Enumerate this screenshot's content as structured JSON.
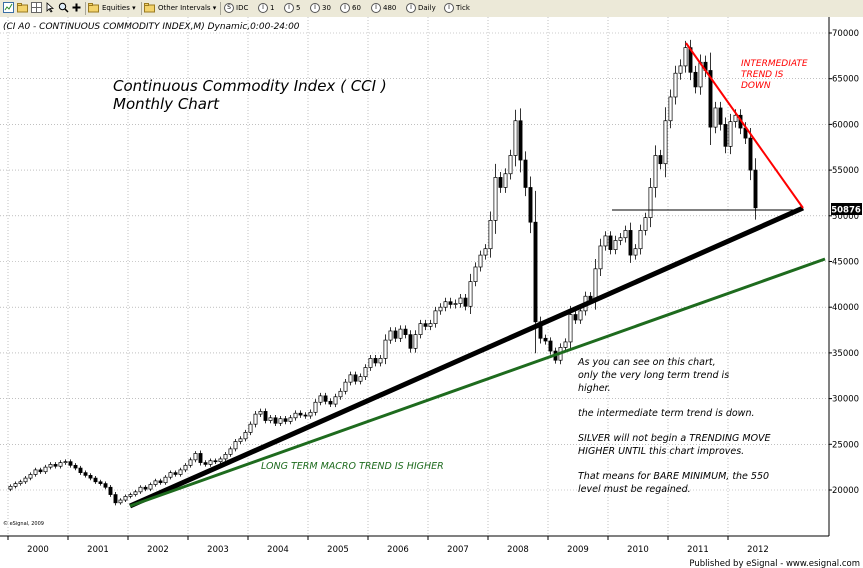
{
  "toolbar": {
    "equities_label": "Equities",
    "other_intervals_label": "Other Intervals",
    "intervals": [
      "IDC",
      "1",
      "5",
      "30",
      "60",
      "480",
      "Daily",
      "Tick"
    ],
    "interval_markers": [
      "S",
      "I",
      "I",
      "I",
      "I",
      "I",
      "I",
      "I"
    ]
  },
  "header": {
    "symbol_line": "(CI A0 - CONTINUOUS COMMODITY INDEX,M) Dynamic,0:00-24:00"
  },
  "annotations": {
    "title_line1": "Continuous Commodity Index ( CCI )",
    "title_line2": "Monthly Chart",
    "intermediate_line1": "INTERMEDIATE",
    "intermediate_line2": "TREND IS",
    "intermediate_line3": "DOWN",
    "long_term_text": "LONG TERM MACRO TREND IS HIGHER",
    "note_l1": "As you can see on this chart,",
    "note_l2": "only the very long term trend is",
    "note_l3": "higher.",
    "note_l4": "the intermediate term trend is down.",
    "note_l5": "SILVER will not begin a TRENDING MOVE",
    "note_l6": "HIGHER UNTIL this chart improves.",
    "note_l7": "That means for BARE MINIMUM, the 550",
    "note_l8": "level must be regained.",
    "copyright": "© eSignal, 2009",
    "published": "Published by eSignal - www.esignal.com"
  },
  "colors": {
    "up_candle": "#ffffff",
    "down_candle": "#000000",
    "intermediate_trend": "#ff0000",
    "long_term_trend": "#1e6b1e",
    "support_trend": "#000000",
    "annotation_red": "#ff0000",
    "annotation_green": "#1e6b1e",
    "price_label_bg": "#000000"
  },
  "chart_data": {
    "type": "candlestick",
    "x_ticks": [
      "2000",
      "2001",
      "2002",
      "2003",
      "2004",
      "2005",
      "2006",
      "2007",
      "2008",
      "2009",
      "2010",
      "2011",
      "2012"
    ],
    "y_ticks": [
      "20000",
      "25000",
      "30000",
      "35000",
      "40000",
      "45000",
      "50000",
      "55000",
      "60000",
      "65000",
      "70000"
    ],
    "ylim": [
      16000,
      71000
    ],
    "last_price": "50876",
    "grid": true,
    "series_close": [
      [
        "2000-01",
        20400
      ],
      [
        "2000-02",
        20700
      ],
      [
        "2000-03",
        20900
      ],
      [
        "2000-04",
        21300
      ],
      [
        "2000-05",
        21700
      ],
      [
        "2000-06",
        22200
      ],
      [
        "2000-07",
        22000
      ],
      [
        "2000-08",
        22500
      ],
      [
        "2000-09",
        22800
      ],
      [
        "2000-10",
        22600
      ],
      [
        "2000-11",
        23000
      ],
      [
        "2000-12",
        23100
      ],
      [
        "2001-01",
        22700
      ],
      [
        "2001-02",
        22400
      ],
      [
        "2001-03",
        21900
      ],
      [
        "2001-04",
        21600
      ],
      [
        "2001-05",
        21300
      ],
      [
        "2001-06",
        20900
      ],
      [
        "2001-07",
        20700
      ],
      [
        "2001-08",
        20300
      ],
      [
        "2001-09",
        19500
      ],
      [
        "2001-10",
        18600
      ],
      [
        "2001-11",
        18900
      ],
      [
        "2001-12",
        19300
      ],
      [
        "2002-01",
        19500
      ],
      [
        "2002-02",
        19800
      ],
      [
        "2002-03",
        20300
      ],
      [
        "2002-04",
        20100
      ],
      [
        "2002-05",
        20600
      ],
      [
        "2002-06",
        21000
      ],
      [
        "2002-07",
        20800
      ],
      [
        "2002-08",
        21400
      ],
      [
        "2002-09",
        21900
      ],
      [
        "2002-10",
        21700
      ],
      [
        "2002-11",
        22200
      ],
      [
        "2002-12",
        22700
      ],
      [
        "2003-01",
        23300
      ],
      [
        "2003-02",
        24000
      ],
      [
        "2003-03",
        23000
      ],
      [
        "2003-04",
        22800
      ],
      [
        "2003-05",
        23200
      ],
      [
        "2003-06",
        23100
      ],
      [
        "2003-07",
        23400
      ],
      [
        "2003-08",
        23900
      ],
      [
        "2003-09",
        24500
      ],
      [
        "2003-10",
        25300
      ],
      [
        "2003-11",
        25600
      ],
      [
        "2003-12",
        26300
      ],
      [
        "2004-01",
        27200
      ],
      [
        "2004-02",
        28300
      ],
      [
        "2004-03",
        28600
      ],
      [
        "2004-04",
        27600
      ],
      [
        "2004-05",
        27900
      ],
      [
        "2004-06",
        27300
      ],
      [
        "2004-07",
        27800
      ],
      [
        "2004-08",
        27500
      ],
      [
        "2004-09",
        27900
      ],
      [
        "2004-10",
        28400
      ],
      [
        "2004-11",
        28200
      ],
      [
        "2004-12",
        28100
      ],
      [
        "2005-01",
        28500
      ],
      [
        "2005-02",
        29600
      ],
      [
        "2005-03",
        30300
      ],
      [
        "2005-04",
        29700
      ],
      [
        "2005-05",
        29400
      ],
      [
        "2005-06",
        30200
      ],
      [
        "2005-07",
        30800
      ],
      [
        "2005-08",
        31800
      ],
      [
        "2005-09",
        32600
      ],
      [
        "2005-10",
        31900
      ],
      [
        "2005-11",
        32400
      ],
      [
        "2005-12",
        33400
      ],
      [
        "2006-01",
        34400
      ],
      [
        "2006-02",
        33900
      ],
      [
        "2006-03",
        34400
      ],
      [
        "2006-04",
        36400
      ],
      [
        "2006-05",
        37400
      ],
      [
        "2006-06",
        36600
      ],
      [
        "2006-07",
        37600
      ],
      [
        "2006-08",
        37000
      ],
      [
        "2006-09",
        35500
      ],
      [
        "2006-10",
        37000
      ],
      [
        "2006-11",
        38200
      ],
      [
        "2006-12",
        37900
      ],
      [
        "2007-01",
        38200
      ],
      [
        "2007-02",
        39600
      ],
      [
        "2007-03",
        40000
      ],
      [
        "2007-04",
        40600
      ],
      [
        "2007-05",
        40300
      ],
      [
        "2007-06",
        40400
      ],
      [
        "2007-07",
        41000
      ],
      [
        "2007-08",
        40100
      ],
      [
        "2007-09",
        42800
      ],
      [
        "2007-10",
        44400
      ],
      [
        "2007-11",
        45700
      ],
      [
        "2007-12",
        46400
      ],
      [
        "2008-01",
        49500
      ],
      [
        "2008-02",
        54200
      ],
      [
        "2008-03",
        53100
      ],
      [
        "2008-04",
        54600
      ],
      [
        "2008-05",
        56600
      ],
      [
        "2008-06",
        60400
      ],
      [
        "2008-07",
        56100
      ],
      [
        "2008-08",
        53100
      ],
      [
        "2008-09",
        49300
      ],
      [
        "2008-10",
        38400
      ],
      [
        "2008-11",
        36600
      ],
      [
        "2008-12",
        36300
      ],
      [
        "2009-01",
        35200
      ],
      [
        "2009-02",
        34200
      ],
      [
        "2009-03",
        35600
      ],
      [
        "2009-04",
        36200
      ],
      [
        "2009-05",
        39200
      ],
      [
        "2009-06",
        38600
      ],
      [
        "2009-07",
        39600
      ],
      [
        "2009-08",
        41200
      ],
      [
        "2009-09",
        40800
      ],
      [
        "2009-10",
        44200
      ],
      [
        "2009-11",
        46700
      ],
      [
        "2009-12",
        47800
      ],
      [
        "2010-01",
        46300
      ],
      [
        "2010-02",
        47300
      ],
      [
        "2010-03",
        47600
      ],
      [
        "2010-04",
        48400
      ],
      [
        "2010-05",
        45700
      ],
      [
        "2010-06",
        46400
      ],
      [
        "2010-07",
        48400
      ],
      [
        "2010-08",
        49800
      ],
      [
        "2010-09",
        53100
      ],
      [
        "2010-10",
        56600
      ],
      [
        "2010-11",
        55700
      ],
      [
        "2010-12",
        60400
      ],
      [
        "2011-01",
        63000
      ],
      [
        "2011-02",
        65600
      ],
      [
        "2011-03",
        66400
      ],
      [
        "2011-04",
        68400
      ],
      [
        "2011-05",
        65700
      ],
      [
        "2011-06",
        64100
      ],
      [
        "2011-07",
        66800
      ],
      [
        "2011-08",
        65900
      ],
      [
        "2011-09",
        59700
      ],
      [
        "2011-10",
        61800
      ],
      [
        "2011-11",
        60000
      ],
      [
        "2011-12",
        57600
      ],
      [
        "2012-01",
        60300
      ],
      [
        "2012-02",
        61000
      ],
      [
        "2012-03",
        59600
      ],
      [
        "2012-04",
        58500
      ],
      [
        "2012-05",
        55000
      ],
      [
        "2012-06",
        50876
      ]
    ]
  }
}
